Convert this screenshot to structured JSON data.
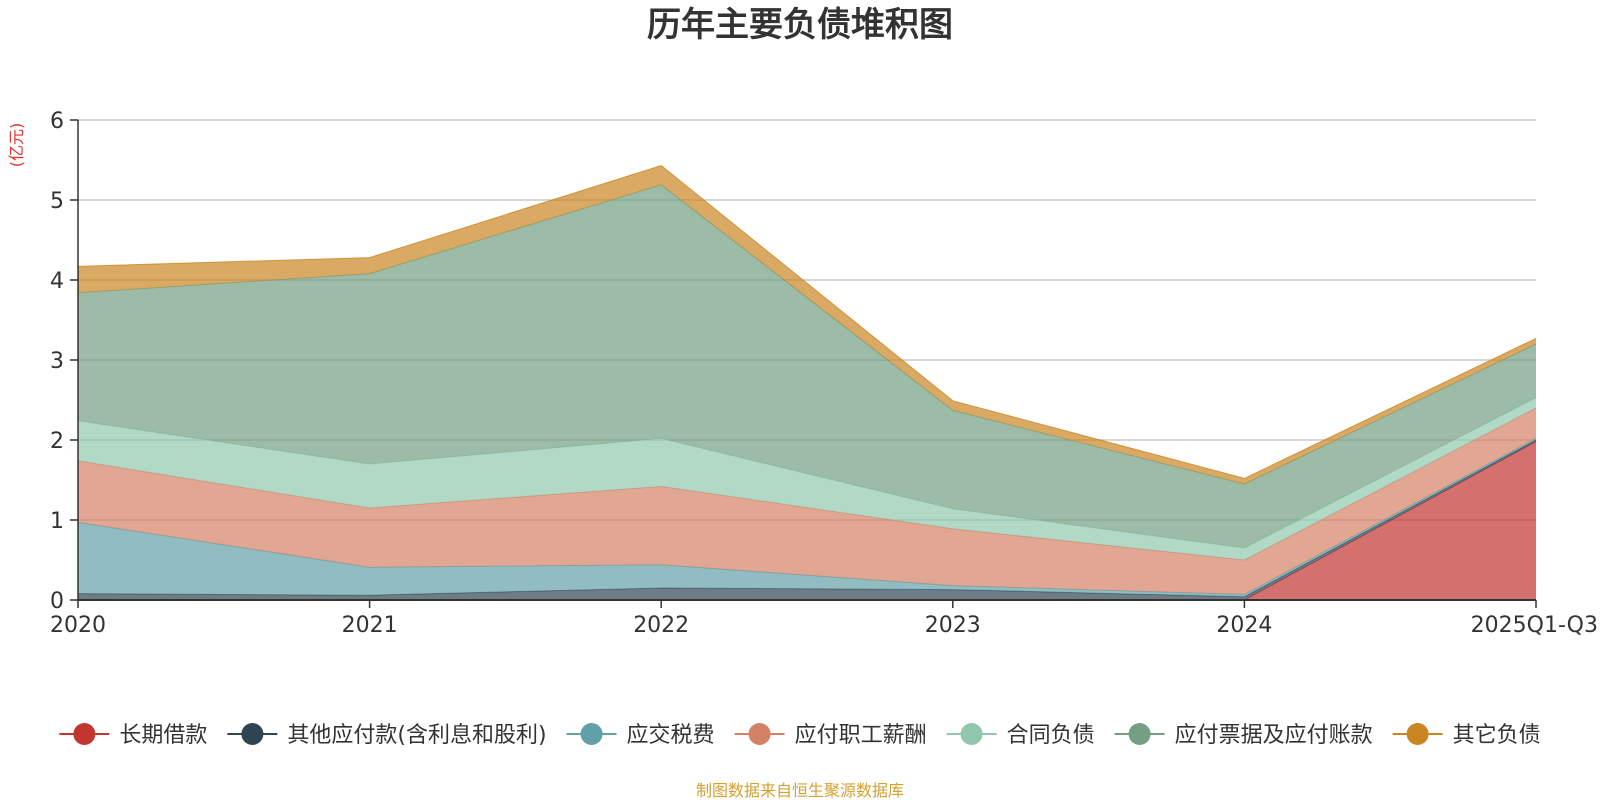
{
  "chart_data": {
    "type": "area",
    "stacked": true,
    "title": "历年主要负债堆积图",
    "ylabel": "(亿元)",
    "xlabel": "",
    "ylim": [
      0,
      6
    ],
    "yticks": [
      0,
      1,
      2,
      3,
      4,
      5,
      6
    ],
    "categories": [
      "2020",
      "2021",
      "2022",
      "2023",
      "2024",
      "2025Q1-Q3"
    ],
    "grid": true,
    "legend_position": "bottom",
    "series": [
      {
        "name": "长期借款",
        "color": "#c23531",
        "values": [
          0,
          0,
          0,
          0,
          0,
          1.98
        ]
      },
      {
        "name": "其他应付款(含利息和股利)",
        "color": "#2f4554",
        "values": [
          0.08,
          0.06,
          0.15,
          0.13,
          0.04,
          0.02
        ]
      },
      {
        "name": "应交税费",
        "color": "#61a0a8",
        "values": [
          0.89,
          0.35,
          0.29,
          0.05,
          0.03,
          0.02
        ]
      },
      {
        "name": "应付职工薪酬",
        "color": "#d48265",
        "values": [
          0.77,
          0.74,
          0.98,
          0.71,
          0.43,
          0.38
        ]
      },
      {
        "name": "合同负债",
        "color": "#91c7ae",
        "values": [
          0.5,
          0.55,
          0.6,
          0.25,
          0.15,
          0.13
        ]
      },
      {
        "name": "应付票据及应付账款",
        "color": "#749f83",
        "values": [
          1.6,
          2.38,
          3.17,
          1.23,
          0.8,
          0.67
        ]
      },
      {
        "name": "其它负债",
        "color": "#ca8622",
        "values": [
          0.33,
          0.2,
          0.24,
          0.12,
          0.07,
          0.07
        ]
      }
    ]
  },
  "source_note": "制图数据来自恒生聚源数据库"
}
